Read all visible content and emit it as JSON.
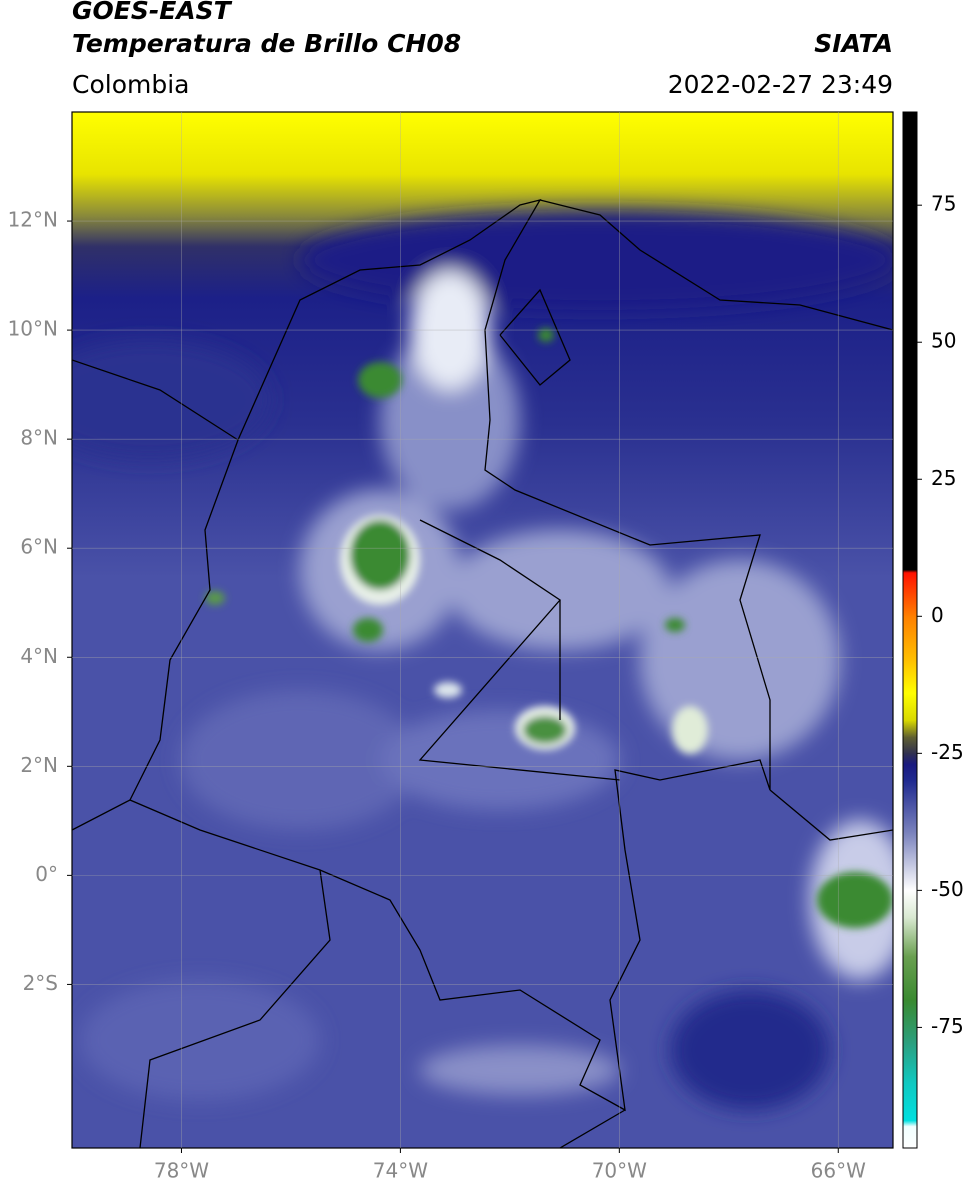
{
  "header": {
    "title": "GOES-EAST",
    "subtitle": "Temperatura de Brillo CH08",
    "region": "Colombia",
    "source": "SIATA",
    "datetime": "2022-02-27 23:49"
  },
  "map": {
    "xlim": [
      -80,
      -65
    ],
    "ylim": [
      -5,
      14
    ],
    "xticks": [
      {
        "value": -78,
        "label": "78°W"
      },
      {
        "value": -74,
        "label": "74°W"
      },
      {
        "value": -70,
        "label": "70°W"
      },
      {
        "value": -66,
        "label": "66°W"
      }
    ],
    "yticks": [
      {
        "value": 12,
        "label": "12°N"
      },
      {
        "value": 10,
        "label": "10°N"
      },
      {
        "value": 8,
        "label": "8°N"
      },
      {
        "value": 6,
        "label": "6°N"
      },
      {
        "value": 4,
        "label": "4°N"
      },
      {
        "value": 2,
        "label": "2°N"
      },
      {
        "value": 0,
        "label": "0°"
      },
      {
        "value": -2,
        "label": "2°S"
      }
    ],
    "grid": true
  },
  "colorbar": {
    "lim": [
      -97,
      92
    ],
    "ticks": [
      75,
      50,
      25,
      0,
      -25,
      -50,
      -75
    ],
    "stops": [
      {
        "value": -97,
        "color": "#ffffff"
      },
      {
        "value": -93,
        "color": "#f0ffff"
      },
      {
        "value": -92,
        "color": "#00e0e0"
      },
      {
        "value": -85,
        "color": "#10c8c0"
      },
      {
        "value": -78,
        "color": "#2aa080"
      },
      {
        "value": -70,
        "color": "#3a8a30"
      },
      {
        "value": -62,
        "color": "#6aa050"
      },
      {
        "value": -55,
        "color": "#d8e8d0"
      },
      {
        "value": -50,
        "color": "#ffffff"
      },
      {
        "value": -40,
        "color": "#8088c0"
      },
      {
        "value": -30,
        "color": "#202a90"
      },
      {
        "value": -27,
        "color": "#1a1a80"
      },
      {
        "value": -25,
        "color": "#303050"
      },
      {
        "value": -22,
        "color": "#606030"
      },
      {
        "value": -19,
        "color": "#d8d800"
      },
      {
        "value": -14,
        "color": "#ffff00"
      },
      {
        "value": -8,
        "color": "#ffc000"
      },
      {
        "value": 0,
        "color": "#ff8000"
      },
      {
        "value": 8,
        "color": "#ff1000"
      },
      {
        "value": 8.5,
        "color": "#000000"
      },
      {
        "value": 92,
        "color": "#000000"
      }
    ]
  }
}
